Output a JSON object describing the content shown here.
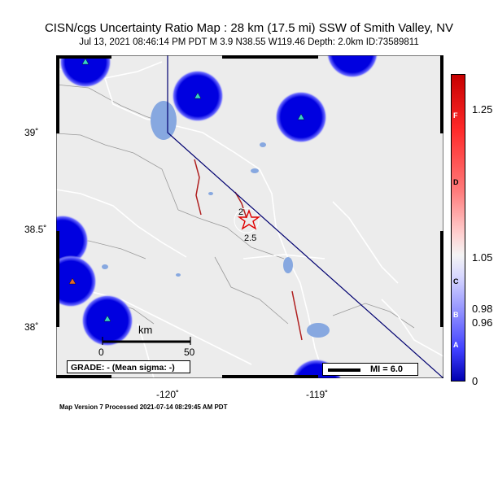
{
  "header": {
    "title": "CISN/cgs Uncertainty Ratio Map : 28 km (17.5 mi) SSW of Smith Valley, NV",
    "subtitle": "Jul 13, 2021 08:46:14 PM PDT   M 3.9   N38.55 W119.46   Depth: 2.0km   ID:73589811"
  },
  "map": {
    "lat_ticks": [
      "39˚",
      "38.5˚",
      "38˚"
    ],
    "lon_ticks": [
      "-120˚",
      "-119˚"
    ],
    "scale_bar": {
      "unit": "km",
      "start": "0",
      "end": "50"
    },
    "grade_box": "GRADE: - (Mean sigma: -)",
    "mi_legend": "MI = 6.0",
    "epicenter_label": "2.5",
    "contour_label": "2",
    "colors": {
      "land": "#ececec",
      "water": "#87a8e0",
      "road": "#ffffff",
      "county_line": "#9a9a9a",
      "state_line": "#000070",
      "fault": "#b02020",
      "station_blob": "#0000e0",
      "epicenter": "#e00000"
    }
  },
  "colorbar": {
    "values": [
      "1.25",
      "1.05",
      "0.98",
      "0.96",
      "0"
    ],
    "grades": [
      "F",
      "D",
      "C",
      "B",
      "A"
    ]
  },
  "footer": "Map Version 7 Processed 2021-07-14 08:29:45 AM PDT"
}
